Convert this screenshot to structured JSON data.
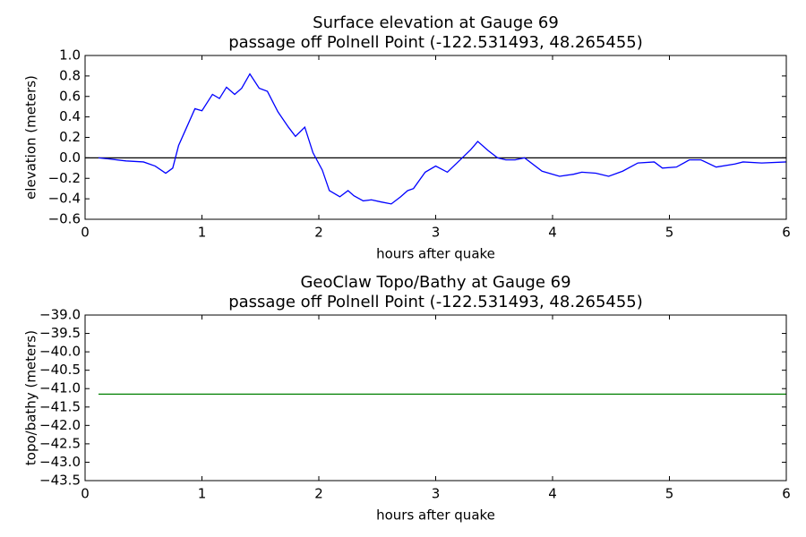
{
  "chart_data": [
    {
      "type": "line",
      "title": "Surface elevation at Gauge 69",
      "subtitle": "passage off Polnell Point  (-122.531493, 48.265455)",
      "x_label": "hours after quake",
      "y_label": "elevation (meters)",
      "xlim": [
        0,
        6
      ],
      "xticks": [
        0,
        1,
        2,
        3,
        4,
        5,
        6
      ],
      "ylim": [
        -0.6,
        1.0
      ],
      "yticks": [
        {
          "value": -0.6,
          "label": "−0.6"
        },
        {
          "value": -0.4,
          "label": "−0.4"
        },
        {
          "value": -0.2,
          "label": "−0.2"
        },
        {
          "value": 0,
          "label": "0.0"
        },
        0.2,
        0.4,
        0.6,
        0.8,
        {
          "value": 1,
          "label": "1.0"
        }
      ],
      "hline": 0,
      "series": [
        {
          "color": "#0000ff",
          "x": [
            0.115,
            0.2,
            0.35,
            0.5,
            0.6,
            0.69,
            0.75,
            0.8,
            0.87,
            0.94,
            1.0,
            1.09,
            1.15,
            1.21,
            1.28,
            1.34,
            1.41,
            1.49,
            1.56,
            1.65,
            1.74,
            1.8,
            1.88,
            1.95,
            2.03,
            2.09,
            2.18,
            2.25,
            2.3,
            2.38,
            2.45,
            2.53,
            2.62,
            2.7,
            2.76,
            2.81,
            2.91,
            3.0,
            3.1,
            3.2,
            3.3,
            3.36,
            3.45,
            3.53,
            3.6,
            3.68,
            3.76,
            3.91,
            4.06,
            4.18,
            4.25,
            4.37,
            4.48,
            4.6,
            4.73,
            4.87,
            4.94,
            5.06,
            5.17,
            5.27,
            5.4,
            5.56,
            5.63,
            5.79,
            6.0
          ],
          "values": [
            0.0,
            -0.01,
            -0.03,
            -0.04,
            -0.08,
            -0.15,
            -0.1,
            0.12,
            0.3,
            0.48,
            0.46,
            0.62,
            0.58,
            0.69,
            0.62,
            0.68,
            0.82,
            0.68,
            0.65,
            0.45,
            0.3,
            0.21,
            0.3,
            0.05,
            -0.12,
            -0.32,
            -0.38,
            -0.32,
            -0.37,
            -0.42,
            -0.41,
            -0.43,
            -0.45,
            -0.38,
            -0.32,
            -0.3,
            -0.14,
            -0.08,
            -0.14,
            -0.03,
            0.08,
            0.16,
            0.07,
            0.0,
            -0.02,
            -0.02,
            0.0,
            -0.13,
            -0.18,
            -0.16,
            -0.14,
            -0.15,
            -0.18,
            -0.13,
            -0.05,
            -0.04,
            -0.1,
            -0.09,
            -0.02,
            -0.02,
            -0.09,
            -0.06,
            -0.04,
            -0.05,
            -0.04
          ]
        }
      ]
    },
    {
      "type": "line",
      "title": "GeoClaw Topo/Bathy at Gauge 69",
      "subtitle": "passage off Polnell Point  (-122.531493, 48.265455)",
      "x_label": "hours after quake",
      "y_label": "topo/bathy (meters)",
      "xlim": [
        0,
        6
      ],
      "xticks": [
        0,
        1,
        2,
        3,
        4,
        5,
        6
      ],
      "ylim": [
        -43.5,
        -39.0
      ],
      "yticks": [
        {
          "value": -43.5,
          "label": "−43.5"
        },
        {
          "value": -43,
          "label": "−43.0"
        },
        {
          "value": -42.5,
          "label": "−42.5"
        },
        {
          "value": -42,
          "label": "−42.0"
        },
        {
          "value": -41.5,
          "label": "−41.5"
        },
        {
          "value": -41,
          "label": "−41.0"
        },
        {
          "value": -40.5,
          "label": "−40.5"
        },
        {
          "value": -40,
          "label": "−40.0"
        },
        {
          "value": -39.5,
          "label": "−39.5"
        },
        {
          "value": -39,
          "label": "−39.0"
        }
      ],
      "series": [
        {
          "color": "#008000",
          "x": [
            0.115,
            6.0
          ],
          "values": [
            -41.15,
            -41.15
          ]
        }
      ]
    }
  ]
}
